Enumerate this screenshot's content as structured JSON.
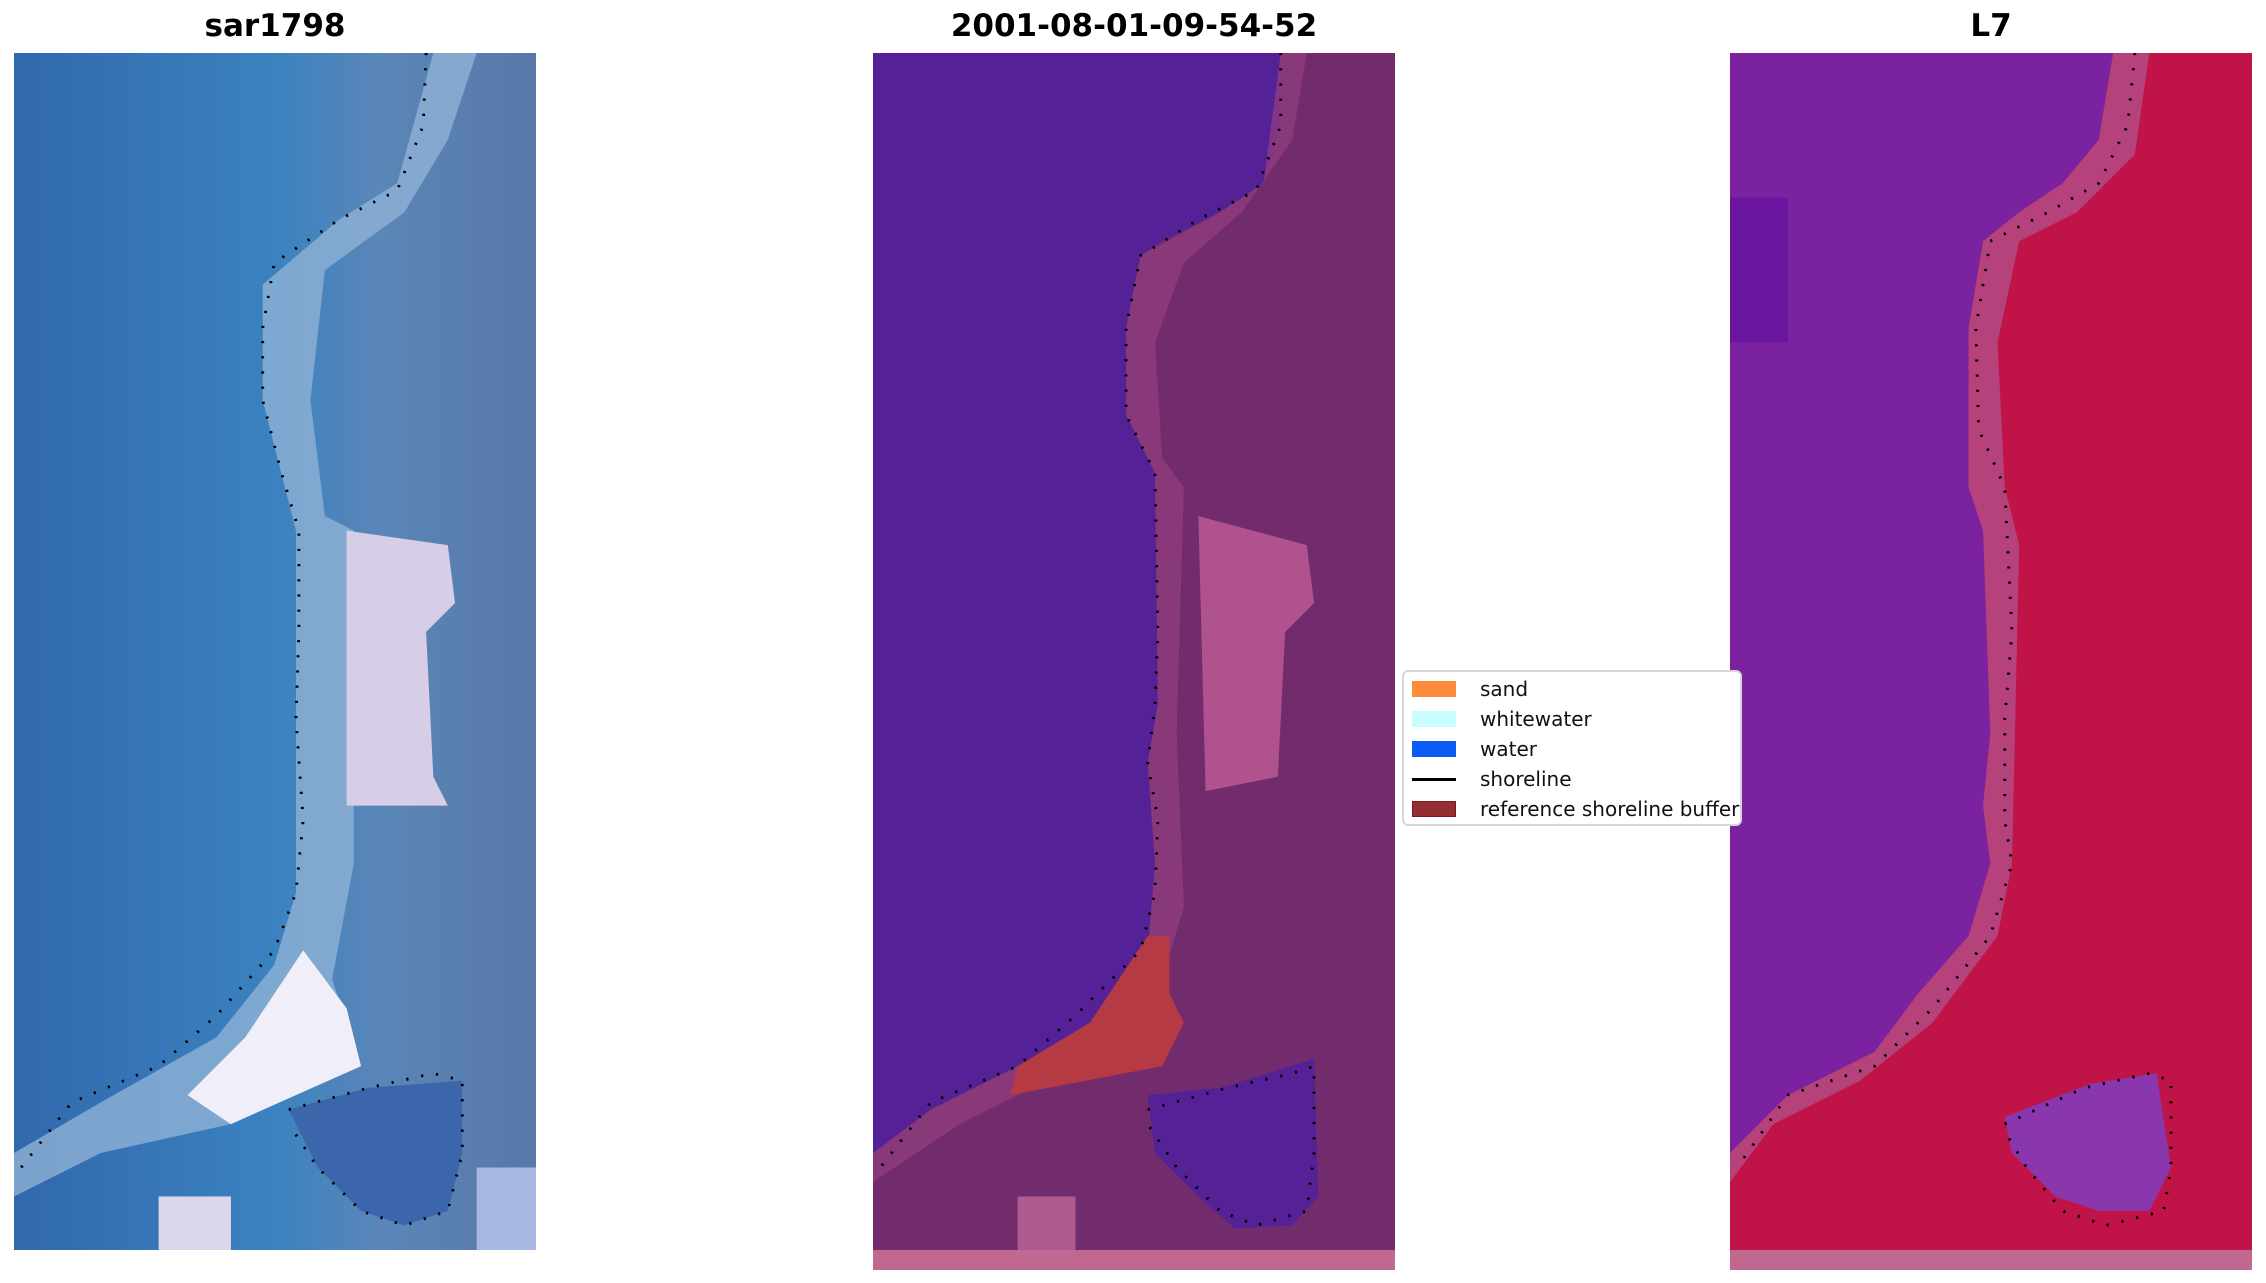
{
  "panels": [
    {
      "title": "sar1798"
    },
    {
      "title": "2001-08-01-09-54-52"
    },
    {
      "title": "L7"
    }
  ],
  "legend": {
    "items": [
      {
        "label": "sand",
        "color": "#ff8c3c",
        "type": "patch"
      },
      {
        "label": "whitewater",
        "color": "#c8fcff",
        "type": "patch"
      },
      {
        "label": "water",
        "color": "#0a5cf5",
        "type": "patch"
      },
      {
        "label": "shoreline",
        "color": "#000000",
        "type": "line"
      },
      {
        "label": "reference shoreline buffer",
        "color": "#962d32",
        "type": "patch"
      }
    ]
  }
}
